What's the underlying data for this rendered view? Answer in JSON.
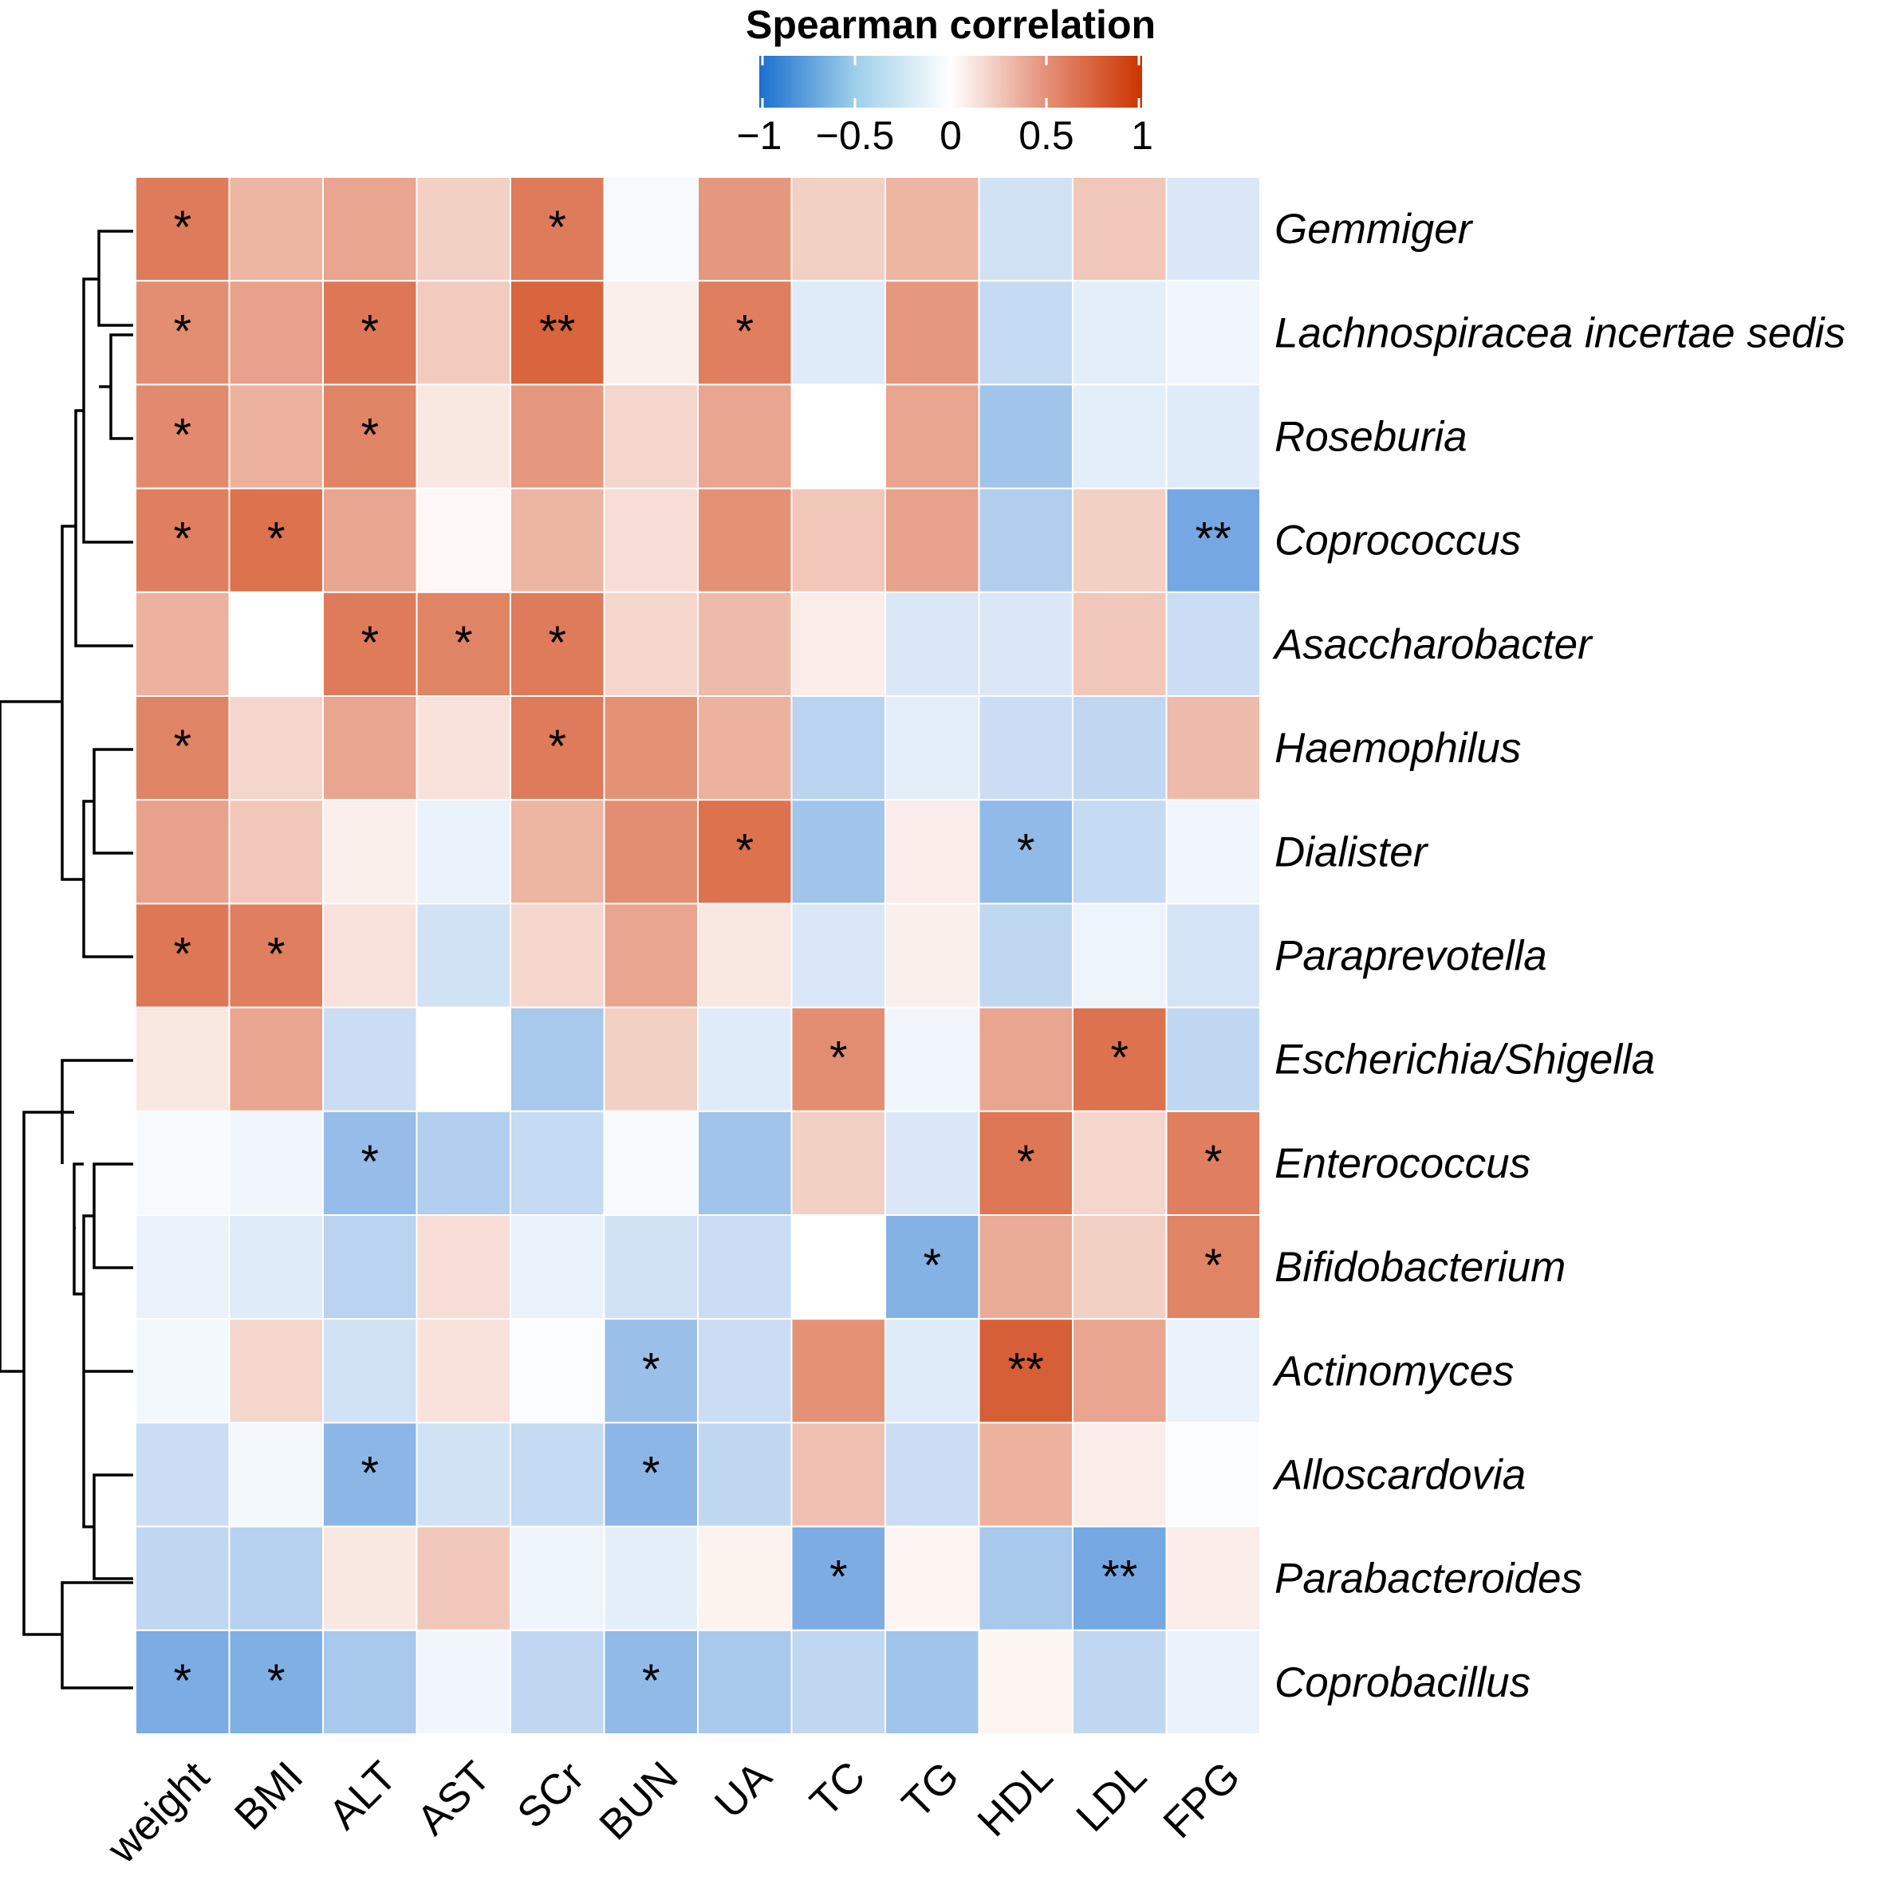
{
  "chart_data": {
    "type": "heatmap",
    "title": "Spearman correlation",
    "legend": {
      "title": "Spearman correlation",
      "ticks": [
        "−1",
        "−0.5",
        "0",
        "0.5",
        "1"
      ],
      "tick_values": [
        -1,
        -0.5,
        0,
        0.5,
        1
      ],
      "range": [
        -1,
        1
      ],
      "colors": {
        "low": "#1a6fce",
        "mid": "#ffffff",
        "high": "#cc3300"
      }
    },
    "columns": [
      "weight",
      "BMI",
      "ALT",
      "AST",
      "SCr",
      "BUN",
      "UA",
      "TC",
      "TG",
      "HDL",
      "LDL",
      "FPG"
    ],
    "rows": [
      "Gemmiger",
      "Lachnospiracea incertae sedis",
      "Roseburia",
      "Coprococcus",
      "Asaccharobacter",
      "Haemophilus",
      "Dialister",
      "Paraprevotella",
      "Escherichia/Shigella",
      "Enterococcus",
      "Bifidobacterium",
      "Actinomyces",
      "Alloscardovia",
      "Parabacteroides",
      "Coprobacillus"
    ],
    "values": [
      [
        0.6,
        0.3,
        0.38,
        0.18,
        0.6,
        -0.02,
        0.45,
        0.18,
        0.3,
        -0.15,
        0.22,
        -0.12
      ],
      [
        0.5,
        0.4,
        0.62,
        0.2,
        0.72,
        0.05,
        0.58,
        -0.1,
        0.45,
        -0.2,
        -0.08,
        -0.04
      ],
      [
        0.52,
        0.32,
        0.55,
        0.08,
        0.45,
        0.15,
        0.38,
        0.0,
        0.38,
        -0.35,
        -0.08,
        -0.1
      ],
      [
        0.58,
        0.65,
        0.38,
        0.02,
        0.3,
        0.12,
        0.48,
        0.22,
        0.4,
        -0.28,
        0.18,
        -0.55
      ],
      [
        0.32,
        0.0,
        0.6,
        0.55,
        0.6,
        0.15,
        0.28,
        0.06,
        -0.12,
        -0.12,
        0.22,
        -0.18
      ],
      [
        0.55,
        0.15,
        0.38,
        0.1,
        0.6,
        0.48,
        0.32,
        -0.25,
        -0.08,
        -0.18,
        -0.22,
        0.28
      ],
      [
        0.4,
        0.22,
        0.05,
        -0.06,
        0.3,
        0.5,
        0.65,
        -0.35,
        0.06,
        -0.42,
        -0.2,
        -0.04
      ],
      [
        0.62,
        0.58,
        0.1,
        -0.15,
        0.15,
        0.38,
        0.08,
        -0.12,
        0.05,
        -0.22,
        -0.05,
        -0.14
      ],
      [
        0.08,
        0.38,
        -0.18,
        0.0,
        -0.32,
        0.18,
        -0.1,
        0.5,
        -0.04,
        0.38,
        0.65,
        -0.22
      ],
      [
        -0.02,
        -0.04,
        -0.4,
        -0.28,
        -0.2,
        -0.02,
        -0.35,
        0.18,
        -0.12,
        0.62,
        0.15,
        0.58
      ],
      [
        -0.06,
        -0.1,
        -0.25,
        0.12,
        -0.06,
        -0.15,
        -0.18,
        0.0,
        -0.48,
        0.35,
        0.18,
        0.55
      ],
      [
        -0.03,
        0.15,
        -0.15,
        0.1,
        -0.01,
        -0.38,
        -0.18,
        0.48,
        -0.1,
        0.75,
        0.38,
        -0.06
      ],
      [
        -0.18,
        -0.03,
        -0.45,
        -0.15,
        -0.2,
        -0.45,
        -0.22,
        0.25,
        -0.18,
        0.32,
        0.06,
        -0.01
      ],
      [
        -0.22,
        -0.26,
        0.08,
        0.22,
        -0.05,
        -0.08,
        0.04,
        -0.52,
        0.03,
        -0.32,
        -0.55,
        0.06
      ],
      [
        -0.52,
        -0.5,
        -0.32,
        -0.04,
        -0.22,
        -0.42,
        -0.32,
        -0.22,
        -0.35,
        0.03,
        -0.22,
        -0.06
      ]
    ],
    "significance": [
      [
        "*",
        "",
        "",
        "",
        "*",
        "",
        "",
        "",
        "",
        "",
        "",
        ""
      ],
      [
        "*",
        "",
        "*",
        "",
        "**",
        "",
        "*",
        "",
        "",
        "",
        "",
        ""
      ],
      [
        "*",
        "",
        "*",
        "",
        "",
        "",
        "",
        "",
        "",
        "",
        "",
        ""
      ],
      [
        "*",
        "*",
        "",
        "",
        "",
        "",
        "",
        "",
        "",
        "",
        "",
        "**"
      ],
      [
        "",
        "",
        "*",
        "*",
        "*",
        "",
        "",
        "",
        "",
        "",
        "",
        ""
      ],
      [
        "*",
        "",
        "",
        "",
        "*",
        "",
        "",
        "",
        "",
        "",
        "",
        ""
      ],
      [
        "",
        "",
        "",
        "",
        "",
        "",
        "*",
        "",
        "",
        "*",
        "",
        ""
      ],
      [
        "*",
        "*",
        "",
        "",
        "",
        "",
        "",
        "",
        "",
        "",
        "",
        ""
      ],
      [
        "",
        "",
        "",
        "",
        "",
        "",
        "",
        "*",
        "",
        "",
        "*",
        ""
      ],
      [
        "",
        "",
        "*",
        "",
        "",
        "",
        "",
        "",
        "",
        "*",
        "",
        "*"
      ],
      [
        "",
        "",
        "",
        "",
        "",
        "",
        "",
        "",
        "*",
        "",
        "",
        "*"
      ],
      [
        "",
        "",
        "",
        "",
        "",
        "*",
        "",
        "",
        "",
        "**",
        "",
        ""
      ],
      [
        "",
        "",
        "*",
        "",
        "",
        "*",
        "",
        "",
        "",
        "",
        "",
        ""
      ],
      [
        "",
        "",
        "",
        "",
        "",
        "",
        "",
        "*",
        "",
        "",
        "**",
        ""
      ],
      [
        "*",
        "*",
        "",
        "",
        "",
        "*",
        "",
        "",
        "",
        "",
        "",
        ""
      ]
    ],
    "row_dendrogram": "hierarchical clustering of rows",
    "grid": false
  }
}
